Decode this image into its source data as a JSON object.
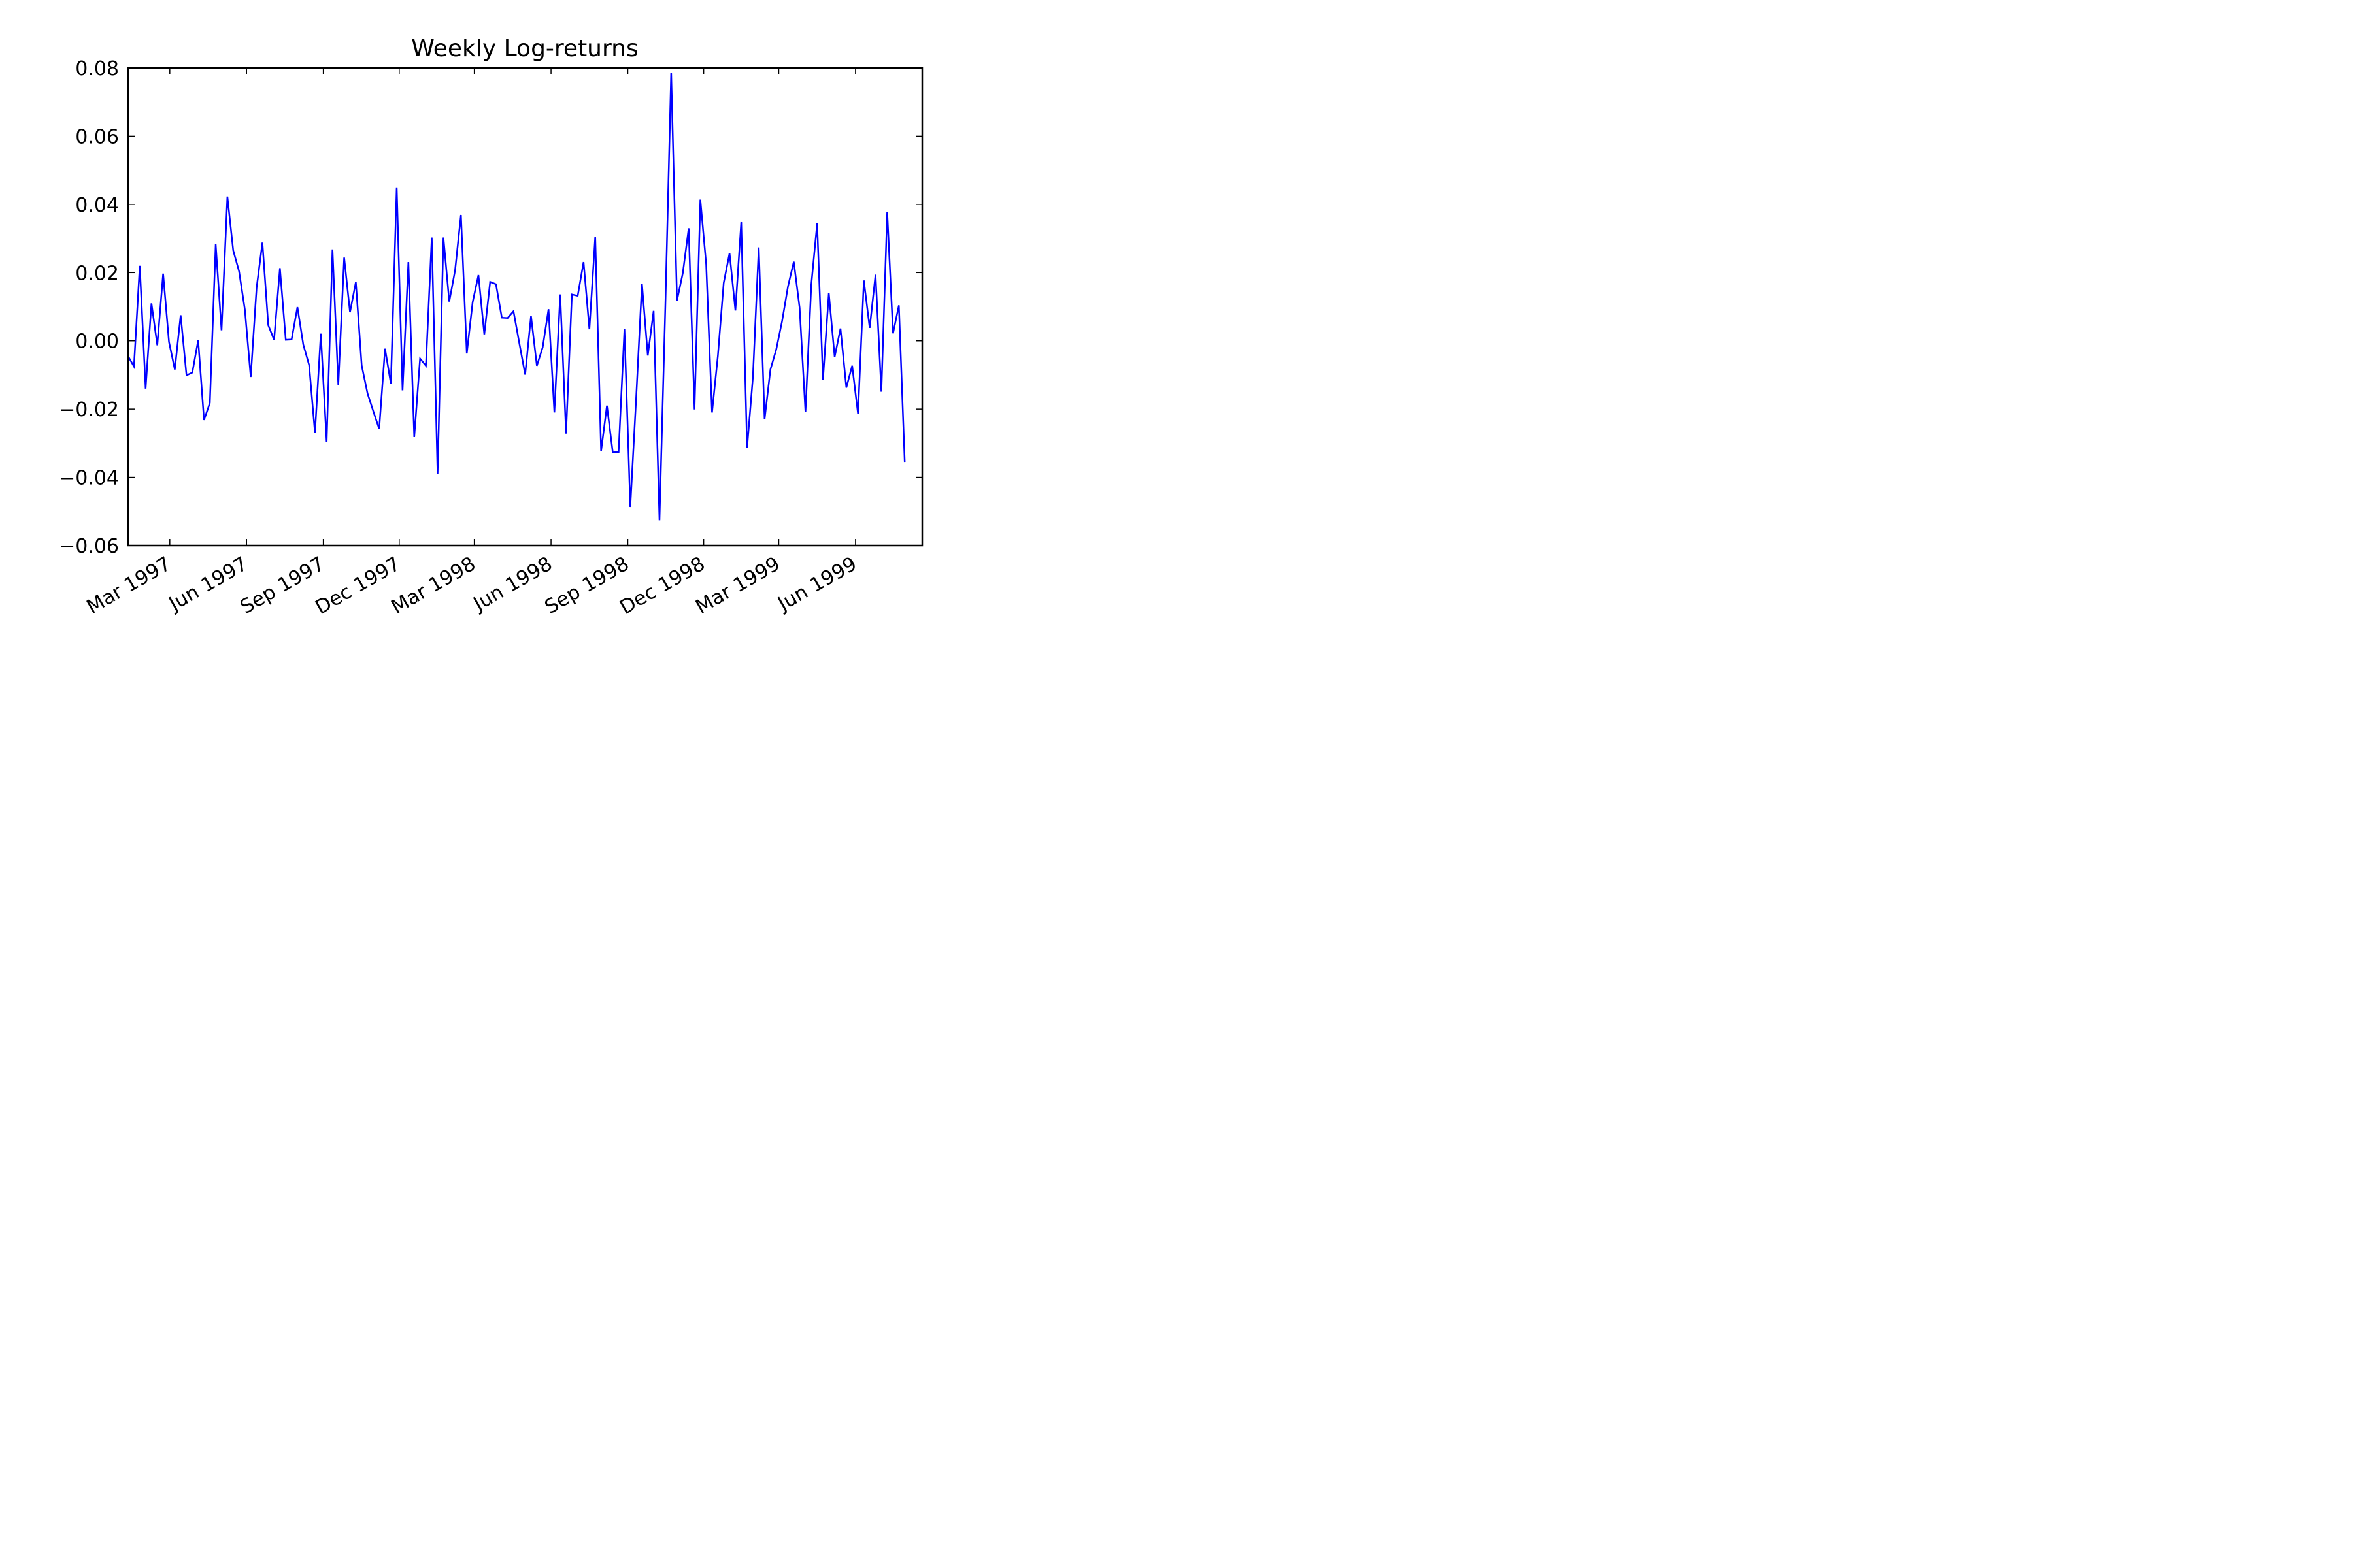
{
  "chart_data": {
    "type": "line",
    "title": "Weekly Log-returns",
    "xlabel": "",
    "ylabel": "",
    "x_start": "1997-01-10",
    "x_step_days": 7,
    "xlim": [
      "1997-01-10",
      "1999-08-20"
    ],
    "ylim": [
      -0.06,
      0.08
    ],
    "y_ticks": [
      -0.06,
      -0.04,
      -0.02,
      0.0,
      0.02,
      0.04,
      0.06,
      0.08
    ],
    "y_tick_labels": [
      "−0.06",
      "−0.04",
      "−0.02",
      "0.00",
      "0.02",
      "0.04",
      "0.06",
      "0.08"
    ],
    "x_ticks": [
      "1997-03-01",
      "1997-06-01",
      "1997-09-01",
      "1997-12-01",
      "1998-03-01",
      "1998-06-01",
      "1998-09-01",
      "1998-12-01",
      "1999-03-01",
      "1999-06-01"
    ],
    "x_tick_labels": [
      "Mar 1997",
      "Jun 1997",
      "Sep 1997",
      "Dec 1997",
      "Mar 1998",
      "Jun 1998",
      "Sep 1998",
      "Dec 1998",
      "Mar 1999",
      "Jun 1999"
    ],
    "grid": false,
    "legend": "none",
    "series": [
      {
        "color": "#0000ff",
        "values": [
          -0.0045,
          -0.0075,
          0.022,
          -0.014,
          0.011,
          -0.0013,
          0.0197,
          -0.0003,
          -0.0084,
          0.0075,
          -0.0101,
          -0.0093,
          0.0002,
          -0.0232,
          -0.0182,
          0.0283,
          0.0031,
          0.0423,
          0.0265,
          0.0204,
          0.0091,
          -0.0106,
          0.0155,
          0.0288,
          0.0046,
          0.0003,
          0.0213,
          0.0003,
          0.0004,
          0.0099,
          -0.0011,
          -0.0071,
          -0.027,
          0.0021,
          -0.0297,
          0.0268,
          -0.0129,
          0.0244,
          0.0084,
          0.0172,
          -0.0072,
          -0.0154,
          -0.0207,
          -0.0258,
          -0.0023,
          -0.0126,
          0.045,
          -0.0145,
          0.0231,
          -0.0282,
          -0.0052,
          -0.0073,
          0.0303,
          -0.0391,
          0.0303,
          0.0115,
          0.0207,
          0.0369,
          -0.0037,
          0.0113,
          0.0193,
          0.0019,
          0.0173,
          0.0166,
          0.0068,
          0.0067,
          0.0087,
          -0.0007,
          -0.0099,
          0.0073,
          -0.0073,
          -0.0019,
          0.0093,
          -0.021,
          0.0136,
          -0.0272,
          0.0136,
          0.0132,
          0.0231,
          0.0034,
          0.0305,
          -0.0323,
          -0.019,
          -0.0327,
          -0.0326,
          0.0034,
          -0.0487,
          -0.017,
          0.0167,
          -0.0043,
          0.0088,
          -0.0526,
          0.0099,
          0.0785,
          0.0118,
          0.0199,
          0.033,
          -0.0201,
          0.0414,
          0.0224,
          -0.021,
          -0.0044,
          0.017,
          0.0257,
          0.0089,
          0.0348,
          -0.0314,
          -0.0106,
          0.0274,
          -0.023,
          -0.0084,
          -0.0025,
          0.0058,
          0.0159,
          0.0232,
          0.0097,
          -0.0209,
          0.0165,
          0.0344,
          -0.0114,
          0.014,
          -0.0047,
          0.0036,
          -0.0137,
          -0.0073,
          -0.0214,
          0.0177,
          0.0038,
          0.0194,
          -0.0149,
          0.0378,
          0.0022,
          0.0104,
          -0.0355
        ]
      }
    ]
  }
}
